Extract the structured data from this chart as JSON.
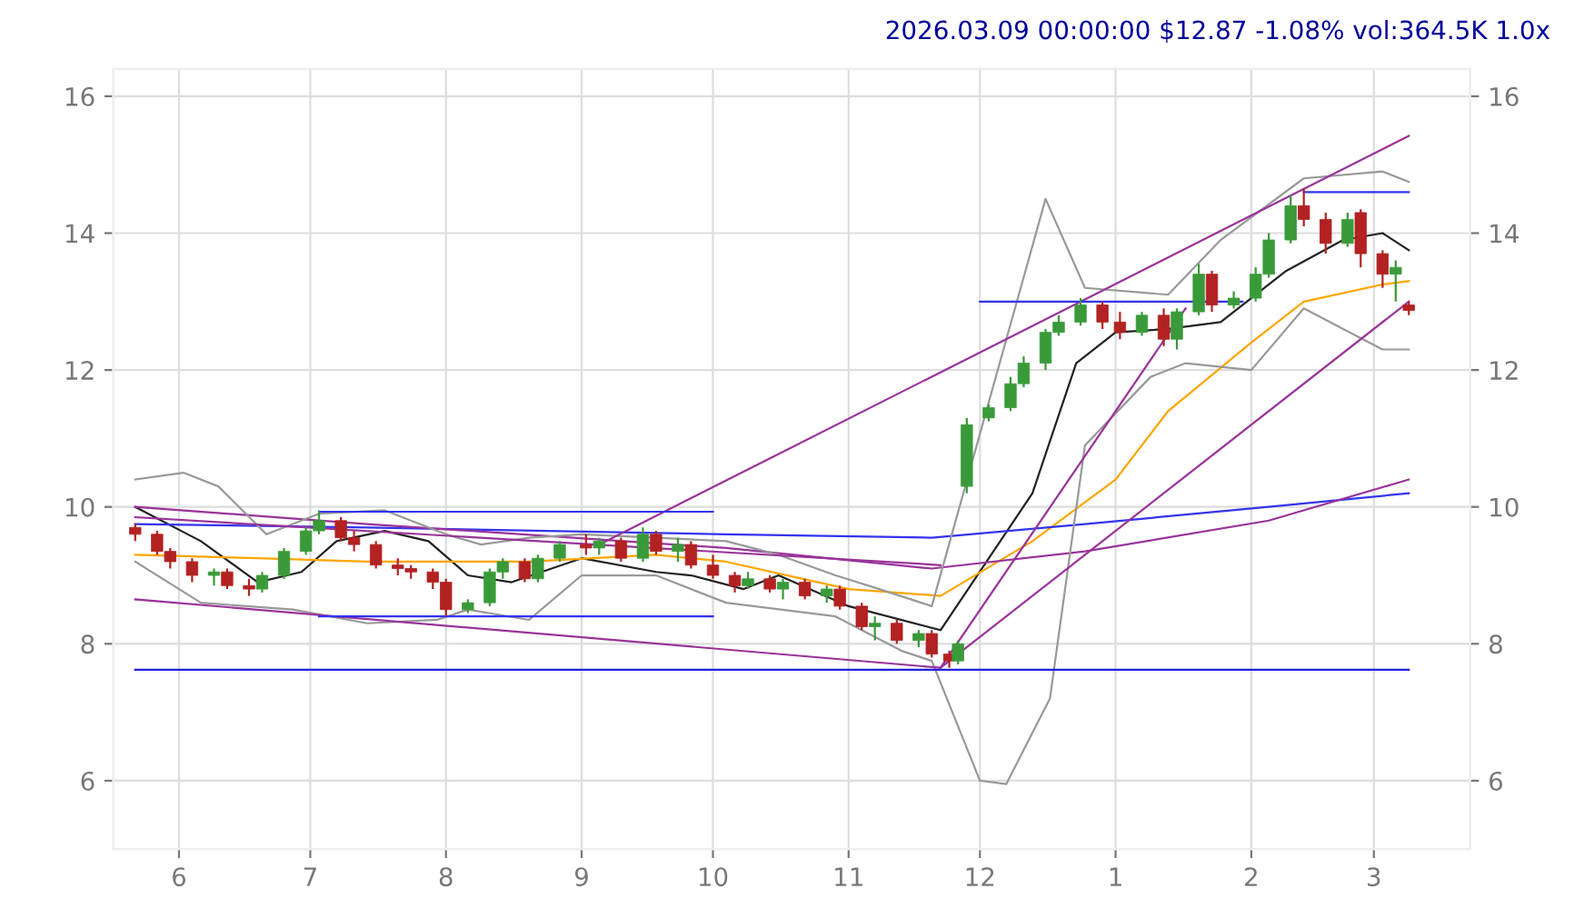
{
  "chart_data": {
    "type": "candlestick",
    "title": "2026.03.09 00:00:00 $12.87 -1.08% vol:364.5K 1.0x",
    "x": [
      "2025-05-22",
      "2025-05-27",
      "2025-05-30",
      "2025-06-04",
      "2025-06-09",
      "2025-06-12",
      "2025-06-17",
      "2025-06-20",
      "2025-06-25",
      "2025-06-30",
      "2025-07-03",
      "2025-07-08",
      "2025-07-11",
      "2025-07-16",
      "2025-07-21",
      "2025-07-24",
      "2025-07-29",
      "2025-08-01",
      "2025-08-06",
      "2025-08-11",
      "2025-08-14",
      "2025-08-19",
      "2025-08-22",
      "2025-08-27",
      "2025-09-02",
      "2025-09-05",
      "2025-09-10",
      "2025-09-15",
      "2025-09-18",
      "2025-09-23",
      "2025-09-26",
      "2025-10-01",
      "2025-10-06",
      "2025-10-09",
      "2025-10-14",
      "2025-10-17",
      "2025-10-22",
      "2025-10-27",
      "2025-10-30",
      "2025-11-04",
      "2025-11-07",
      "2025-11-12",
      "2025-11-17",
      "2025-11-20",
      "2025-11-24",
      "2025-11-26",
      "2025-11-28",
      "2025-12-03",
      "2025-12-08",
      "2025-12-11",
      "2025-12-16",
      "2025-12-19",
      "2025-12-24",
      "2025-12-29",
      "2026-01-02",
      "2026-01-07",
      "2026-01-12",
      "2026-01-15",
      "2026-01-20",
      "2026-01-23",
      "2026-01-28",
      "2026-02-02",
      "2026-02-05",
      "2026-02-10",
      "2026-02-13",
      "2026-02-18",
      "2026-02-23",
      "2026-02-26",
      "2026-03-03",
      "2026-03-06",
      "2026-03-09"
    ],
    "ohlc": [
      [
        9.7,
        9.75,
        9.5,
        9.6
      ],
      [
        9.6,
        9.65,
        9.3,
        9.35
      ],
      [
        9.35,
        9.4,
        9.1,
        9.2
      ],
      [
        9.2,
        9.25,
        8.9,
        9.0
      ],
      [
        9.0,
        9.1,
        8.85,
        9.05
      ],
      [
        9.05,
        9.1,
        8.8,
        8.85
      ],
      [
        8.85,
        8.95,
        8.7,
        8.8
      ],
      [
        8.8,
        9.05,
        8.75,
        9.0
      ],
      [
        9.0,
        9.4,
        8.95,
        9.35
      ],
      [
        9.35,
        9.7,
        9.3,
        9.65
      ],
      [
        9.65,
        9.95,
        9.6,
        9.8
      ],
      [
        9.8,
        9.85,
        9.5,
        9.55
      ],
      [
        9.55,
        9.65,
        9.35,
        9.45
      ],
      [
        9.45,
        9.5,
        9.1,
        9.15
      ],
      [
        9.15,
        9.25,
        9.0,
        9.1
      ],
      [
        9.1,
        9.15,
        8.95,
        9.05
      ],
      [
        9.05,
        9.1,
        8.8,
        8.9
      ],
      [
        8.9,
        8.95,
        8.4,
        8.5
      ],
      [
        8.5,
        8.65,
        8.45,
        8.6
      ],
      [
        8.6,
        9.1,
        8.55,
        9.05
      ],
      [
        9.05,
        9.25,
        8.95,
        9.2
      ],
      [
        9.2,
        9.25,
        8.9,
        8.95
      ],
      [
        8.95,
        9.3,
        8.9,
        9.25
      ],
      [
        9.25,
        9.5,
        9.2,
        9.45
      ],
      [
        9.45,
        9.6,
        9.3,
        9.4
      ],
      [
        9.4,
        9.55,
        9.3,
        9.5
      ],
      [
        9.5,
        9.55,
        9.2,
        9.25
      ],
      [
        9.25,
        9.7,
        9.2,
        9.6
      ],
      [
        9.6,
        9.65,
        9.3,
        9.35
      ],
      [
        9.35,
        9.55,
        9.2,
        9.45
      ],
      [
        9.45,
        9.5,
        9.1,
        9.15
      ],
      [
        9.15,
        9.3,
        8.95,
        9.0
      ],
      [
        9.0,
        9.05,
        8.75,
        8.85
      ],
      [
        8.85,
        9.05,
        8.8,
        8.95
      ],
      [
        8.95,
        9.0,
        8.75,
        8.8
      ],
      [
        8.8,
        8.95,
        8.65,
        8.9
      ],
      [
        8.9,
        8.95,
        8.65,
        8.7
      ],
      [
        8.7,
        8.85,
        8.6,
        8.8
      ],
      [
        8.8,
        8.85,
        8.5,
        8.55
      ],
      [
        8.55,
        8.6,
        8.2,
        8.25
      ],
      [
        8.25,
        8.4,
        8.05,
        8.3
      ],
      [
        8.3,
        8.35,
        8.0,
        8.05
      ],
      [
        8.05,
        8.2,
        7.95,
        8.15
      ],
      [
        8.15,
        8.2,
        7.8,
        7.85
      ],
      [
        7.85,
        7.9,
        7.65,
        7.75
      ],
      [
        7.75,
        8.05,
        7.7,
        8.0
      ],
      [
        10.3,
        11.3,
        10.2,
        11.2
      ],
      [
        11.3,
        11.5,
        11.25,
        11.45
      ],
      [
        11.45,
        11.9,
        11.4,
        11.8
      ],
      [
        11.8,
        12.2,
        11.75,
        12.1
      ],
      [
        12.1,
        12.6,
        12.0,
        12.55
      ],
      [
        12.55,
        12.8,
        12.5,
        12.7
      ],
      [
        12.7,
        13.05,
        12.65,
        12.95
      ],
      [
        12.95,
        13.0,
        12.6,
        12.7
      ],
      [
        12.7,
        12.85,
        12.45,
        12.55
      ],
      [
        12.55,
        12.85,
        12.5,
        12.8
      ],
      [
        12.8,
        12.9,
        12.35,
        12.45
      ],
      [
        12.45,
        12.9,
        12.3,
        12.85
      ],
      [
        12.85,
        13.55,
        12.8,
        13.4
      ],
      [
        13.4,
        13.45,
        12.85,
        12.95
      ],
      [
        12.95,
        13.15,
        12.9,
        13.05
      ],
      [
        13.05,
        13.5,
        13.0,
        13.4
      ],
      [
        13.4,
        14.0,
        13.35,
        13.9
      ],
      [
        13.9,
        14.55,
        13.85,
        14.4
      ],
      [
        14.4,
        14.65,
        14.1,
        14.2
      ],
      [
        14.2,
        14.3,
        13.7,
        13.85
      ],
      [
        13.85,
        14.3,
        13.8,
        14.2
      ],
      [
        14.3,
        14.35,
        13.5,
        13.7
      ],
      [
        13.7,
        13.75,
        13.2,
        13.4
      ],
      [
        13.4,
        13.6,
        13.0,
        13.5
      ],
      [
        12.95,
        13.0,
        12.8,
        12.87
      ]
    ],
    "series": [
      {
        "type": "line",
        "color": "#222222",
        "x": [
          "2025-05-22",
          "2025-06-06",
          "2025-06-19",
          "2025-06-29",
          "2025-07-07",
          "2025-07-18",
          "2025-07-28",
          "2025-08-06",
          "2025-08-16",
          "2025-09-01",
          "2025-09-18",
          "2025-09-26",
          "2025-10-08",
          "2025-10-16",
          "2025-11-01",
          "2025-11-22",
          "2025-12-13",
          "2025-12-23",
          "2026-01-01",
          "2026-01-13",
          "2026-01-25",
          "2026-02-09",
          "2026-02-22",
          "2026-03-03",
          "2026-03-09"
        ],
        "values": [
          10.0,
          9.5,
          8.9,
          9.05,
          9.5,
          9.65,
          9.5,
          9.0,
          8.9,
          9.25,
          9.05,
          9.0,
          8.8,
          9.0,
          8.55,
          8.2,
          10.2,
          12.1,
          12.55,
          12.6,
          12.7,
          13.45,
          13.9,
          14.0,
          13.75
        ]
      },
      {
        "type": "line",
        "color": "#ffa500",
        "x": [
          "2025-05-22",
          "2025-06-19",
          "2025-07-14",
          "2025-08-20",
          "2025-09-18",
          "2025-10-04",
          "2025-11-01",
          "2025-11-22",
          "2025-12-13",
          "2026-01-01",
          "2026-01-13",
          "2026-02-01",
          "2026-02-13",
          "2026-03-03",
          "2026-03-09"
        ],
        "values": [
          9.3,
          9.25,
          9.2,
          9.2,
          9.3,
          9.2,
          8.8,
          8.7,
          9.5,
          10.4,
          11.4,
          12.4,
          13.0,
          13.25,
          13.3
        ]
      },
      {
        "type": "line",
        "color": "#3333ee",
        "x": [
          "2025-05-22",
          "2025-07-14",
          "2025-10-04",
          "2025-11-20",
          "2025-12-25",
          "2026-02-05",
          "2026-03-09"
        ],
        "values": [
          9.75,
          9.7,
          9.6,
          9.55,
          9.75,
          10.0,
          10.2
        ]
      },
      {
        "type": "line",
        "color": "#993399",
        "x": [
          "2025-05-22",
          "2025-07-14",
          "2025-10-04",
          "2025-11-20",
          "2025-12-25",
          "2026-02-05",
          "2026-03-09"
        ],
        "values": [
          10.0,
          9.75,
          9.4,
          9.1,
          9.35,
          9.8,
          10.4
        ]
      },
      {
        "type": "line",
        "color": "#999999",
        "x": [
          "2025-05-22",
          "2025-06-02",
          "2025-06-10",
          "2025-06-21",
          "2025-07-03",
          "2025-07-18",
          "2025-08-01",
          "2025-08-09",
          "2025-08-20",
          "2025-09-01",
          "2025-09-18",
          "2025-10-04",
          "2025-10-16",
          "2025-10-29",
          "2025-11-08",
          "2025-11-20",
          "2025-12-16",
          "2025-12-25",
          "2026-01-13",
          "2026-01-25",
          "2026-02-13",
          "2026-03-03",
          "2026-03-09"
        ],
        "values": [
          10.4,
          10.5,
          10.3,
          9.6,
          9.9,
          9.95,
          9.6,
          9.45,
          9.55,
          9.6,
          9.55,
          9.5,
          9.3,
          9.0,
          8.8,
          8.55,
          14.5,
          13.2,
          13.1,
          13.9,
          14.8,
          14.9,
          14.75
        ]
      },
      {
        "type": "line",
        "color": "#999999",
        "x": [
          "2025-05-22",
          "2025-06-06",
          "2025-06-27",
          "2025-07-14",
          "2025-07-30",
          "2025-08-06",
          "2025-08-20",
          "2025-09-01",
          "2025-09-18",
          "2025-10-04",
          "2025-10-29",
          "2025-11-13",
          "2025-11-20",
          "2025-12-01",
          "2025-12-07",
          "2025-12-17",
          "2025-12-25",
          "2026-01-09",
          "2026-01-17",
          "2026-02-01",
          "2026-02-13",
          "2026-02-22",
          "2026-03-03",
          "2026-03-09"
        ],
        "values": [
          9.2,
          8.6,
          8.5,
          8.3,
          8.35,
          8.5,
          8.35,
          9.0,
          9.0,
          8.6,
          8.4,
          7.9,
          7.75,
          6.0,
          5.95,
          7.2,
          10.9,
          11.9,
          12.1,
          12.0,
          12.9,
          12.6,
          12.3,
          12.3
        ]
      },
      {
        "type": "line",
        "color": "#993399",
        "x": [
          "2025-09-05",
          "2026-03-09"
        ],
        "values": [
          9.45,
          15.42
        ]
      },
      {
        "type": "line",
        "color": "#993399",
        "x": [
          "2025-05-22",
          "2025-11-22"
        ],
        "values": [
          9.85,
          9.15
        ]
      },
      {
        "type": "line",
        "color": "#993399",
        "x": [
          "2025-05-22",
          "2025-11-22",
          "2026-03-09"
        ],
        "values": [
          8.65,
          7.65,
          13.0
        ]
      },
      {
        "type": "line",
        "color": "#993399",
        "x": [
          "2025-11-22",
          "2026-01-17"
        ],
        "values": [
          7.65,
          12.9
        ]
      },
      {
        "type": "line",
        "color": "#3333ee",
        "x": [
          "2025-07-03",
          "2025-10-01"
        ],
        "values": [
          9.93,
          9.93
        ]
      },
      {
        "type": "line",
        "color": "#3333ee",
        "x": [
          "2025-07-03",
          "2025-10-01"
        ],
        "values": [
          8.4,
          8.4
        ]
      },
      {
        "type": "line",
        "color": "#3333ee",
        "x": [
          "2025-12-01",
          "2026-01-30"
        ],
        "values": [
          13.0,
          13.0
        ]
      },
      {
        "type": "line",
        "color": "#3333ee",
        "x": [
          "2026-02-13",
          "2026-03-09"
        ],
        "values": [
          14.6,
          14.6
        ]
      },
      {
        "type": "line",
        "color": "#2222dd",
        "x": [
          "2025-05-22",
          "2026-03-09"
        ],
        "values": [
          7.62,
          7.62
        ]
      }
    ],
    "xlim": [
      "2025-05-17",
      "2026-03-23"
    ],
    "xticks": [
      {
        "value": "2025-06-01",
        "label": "6"
      },
      {
        "value": "2025-07-01",
        "label": "7"
      },
      {
        "value": "2025-08-01",
        "label": "8"
      },
      {
        "value": "2025-09-01",
        "label": "9"
      },
      {
        "value": "2025-10-01",
        "label": "10"
      },
      {
        "value": "2025-11-01",
        "label": "11"
      },
      {
        "value": "2025-12-01",
        "label": "12"
      },
      {
        "value": "2026-01-01",
        "label": "1"
      },
      {
        "value": "2026-02-01",
        "label": "2"
      },
      {
        "value": "2026-03-01",
        "label": "3"
      }
    ],
    "ylim": [
      5.0,
      16.4
    ],
    "yticks": [
      6,
      8,
      10,
      12,
      14,
      16
    ],
    "y2lim": [
      5.0,
      16.4
    ],
    "y2ticks": [
      6,
      8,
      10,
      12,
      14,
      16
    ],
    "grid": true
  }
}
